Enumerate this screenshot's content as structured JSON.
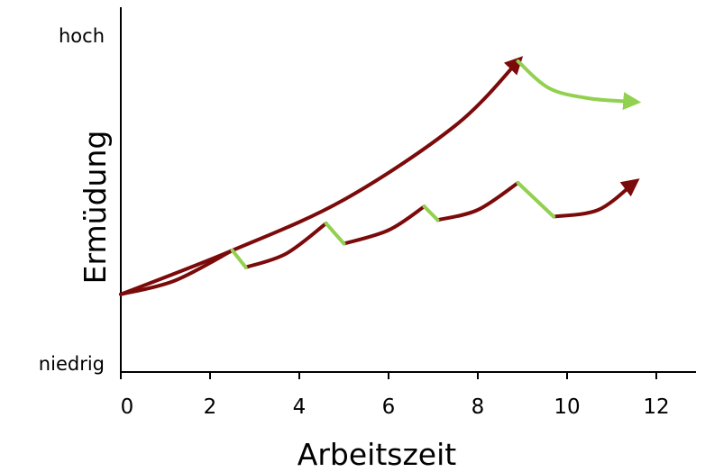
{
  "chart_data": {
    "type": "line",
    "xlabel": "Arbeitszeit",
    "ylabel": "Ermüdung",
    "x_ticks": [
      "0",
      "2",
      "4",
      "6",
      "8",
      "10",
      "12"
    ],
    "xlim": [
      0,
      12.8
    ],
    "ylim": [
      0,
      1
    ],
    "y_level_labels": {
      "high": "hoch",
      "low": "niedrig"
    },
    "grid": false,
    "legend": "none",
    "colors": {
      "fatigue": "#7b0a0a",
      "recovery": "#92d050",
      "axis": "#000000"
    },
    "series": [
      {
        "role": "continuous-work",
        "color": "#7b0a0a",
        "arrow_end": true,
        "points": [
          [
            0,
            0.23
          ],
          [
            2.5,
            0.36
          ],
          [
            5,
            0.51
          ],
          [
            7.5,
            0.73
          ],
          [
            8.9,
            0.92
          ]
        ]
      },
      {
        "role": "recovery-after-work",
        "color": "#92d050",
        "arrow_end": true,
        "points": [
          [
            8.9,
            0.92
          ],
          [
            9.6,
            0.84
          ],
          [
            10.5,
            0.81
          ],
          [
            11.5,
            0.8
          ]
        ]
      },
      {
        "role": "work-with-breaks",
        "color": "#7b0a0a",
        "arrow_end": true,
        "segments": [
          [
            [
              0,
              0.23
            ],
            [
              1.2,
              0.27
            ],
            [
              2.5,
              0.36
            ]
          ],
          [
            [
              2.8,
              0.31
            ],
            [
              3.7,
              0.35
            ],
            [
              4.6,
              0.44
            ]
          ],
          [
            [
              5.0,
              0.38
            ],
            [
              6.0,
              0.42
            ],
            [
              6.8,
              0.49
            ]
          ],
          [
            [
              7.1,
              0.45
            ],
            [
              8.0,
              0.48
            ],
            [
              8.9,
              0.56
            ]
          ],
          [
            [
              9.7,
              0.46
            ],
            [
              10.7,
              0.48
            ],
            [
              11.5,
              0.56
            ]
          ]
        ],
        "breaks": [
          [
            [
              2.5,
              0.36
            ],
            [
              2.8,
              0.31
            ]
          ],
          [
            [
              4.6,
              0.44
            ],
            [
              5.0,
              0.38
            ]
          ],
          [
            [
              6.8,
              0.49
            ],
            [
              7.1,
              0.45
            ]
          ],
          [
            [
              8.9,
              0.56
            ],
            [
              9.7,
              0.46
            ]
          ]
        ]
      }
    ]
  }
}
